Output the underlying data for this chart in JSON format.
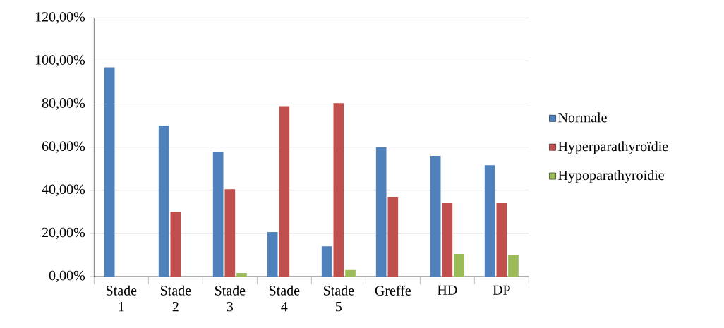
{
  "chart_data": {
    "type": "bar",
    "categories": [
      "Stade 1",
      "Stade 2",
      "Stade 3",
      "Stade 4",
      "Stade 5",
      "Greffe",
      "HD",
      "DP"
    ],
    "series": [
      {
        "name": "Normale",
        "color": "#4f81bd",
        "values": [
          97,
          70,
          57.8,
          20.6,
          14,
          60,
          56,
          51.6
        ]
      },
      {
        "name": "Hyperparathyroïdie",
        "color": "#c0504d",
        "values": [
          0,
          30,
          40.5,
          79,
          80.4,
          37,
          34,
          34
        ]
      },
      {
        "name": "Hypoparathyroidie",
        "color": "#9bbb59",
        "values": [
          0,
          0,
          1.6,
          0,
          3,
          0,
          10.5,
          9.8
        ]
      }
    ],
    "ylim": [
      0,
      120
    ],
    "yticks": [
      {
        "value": 0,
        "label": "0,00%"
      },
      {
        "value": 20,
        "label": "20,00%"
      },
      {
        "value": 40,
        "label": "40,00%"
      },
      {
        "value": 60,
        "label": "60,00%"
      },
      {
        "value": 80,
        "label": "80,00%"
      },
      {
        "value": 100,
        "label": "100,00%"
      },
      {
        "value": 120,
        "label": "120,00%"
      }
    ],
    "grid": "y",
    "legend": "right"
  }
}
